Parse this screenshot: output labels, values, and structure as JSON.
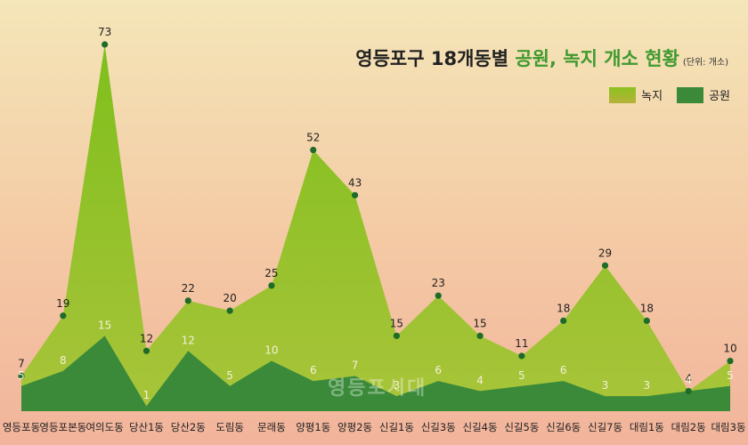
{
  "title": {
    "prefix": "영등포구 18개동별 ",
    "accent": "공원, 녹지 개소 현황",
    "unit": "(단위: 개소)"
  },
  "watermark": "영등포시대",
  "colors": {
    "green_space": "#8cc21f",
    "park": "#3a8a3a",
    "point": "#1f6b2a"
  },
  "chart_data": {
    "type": "area",
    "categories": [
      "영등포동",
      "영등포본동",
      "여의도동",
      "당산1동",
      "당산2동",
      "도림동",
      "문래동",
      "양평1동",
      "양평2동",
      "신길1동",
      "신길3동",
      "신길4동",
      "신길5동",
      "신길6동",
      "신길7동",
      "대림1동",
      "대림2동",
      "대림3동"
    ],
    "series": [
      {
        "name": "녹지",
        "values": [
          7,
          19,
          73,
          12,
          22,
          20,
          25,
          52,
          43,
          15,
          23,
          15,
          11,
          18,
          29,
          18,
          4,
          10
        ]
      },
      {
        "name": "공원",
        "values": [
          5,
          8,
          15,
          1,
          12,
          5,
          10,
          6,
          7,
          3,
          6,
          4,
          5,
          6,
          3,
          3,
          4,
          5
        ]
      }
    ],
    "ylim": [
      0,
      80
    ],
    "legend_position": "top-right",
    "grid": false
  }
}
